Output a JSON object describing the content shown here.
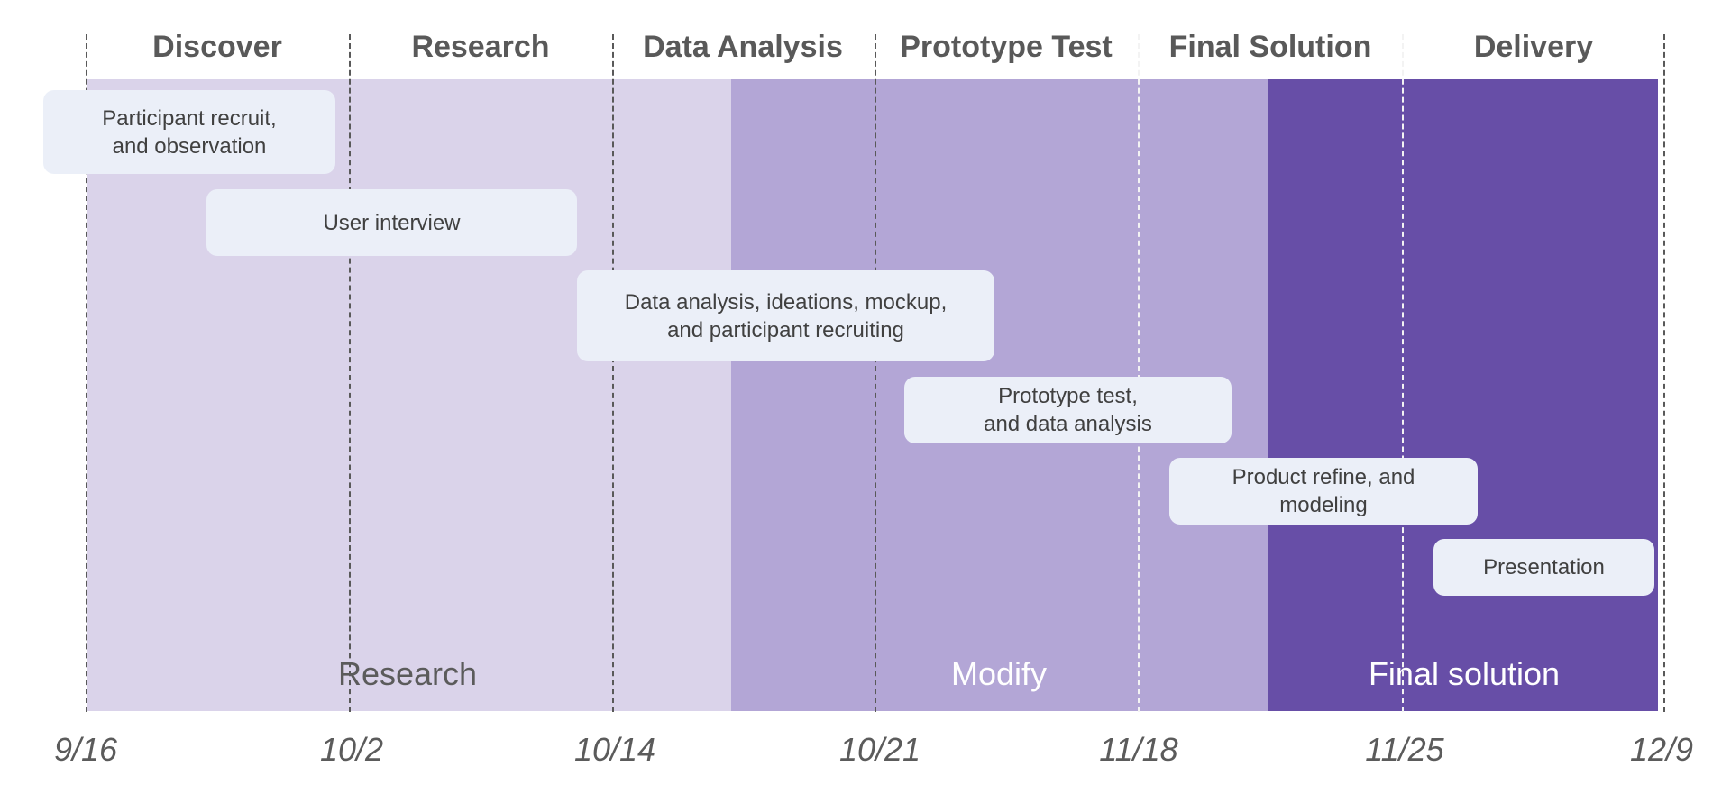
{
  "phases": [
    {
      "label": "Discover"
    },
    {
      "label": "Research"
    },
    {
      "label": "Data Analysis"
    },
    {
      "label": "Prototype Test"
    },
    {
      "label": "Final Solution"
    },
    {
      "label": "Delivery"
    }
  ],
  "dates": [
    "9/16",
    "10/2",
    "10/14",
    "10/21",
    "11/18",
    "11/25",
    "12/9"
  ],
  "stages": [
    {
      "label": "Research",
      "color": "#dad3ea"
    },
    {
      "label": "Modify",
      "color": "#b3a6d6"
    },
    {
      "label": "Final solution",
      "color": "#674ea7"
    }
  ],
  "tasks": [
    {
      "line1": "Participant recruit,",
      "line2": "and observation"
    },
    {
      "line1": "User interview"
    },
    {
      "line1": "Data analysis, ideations, mockup,",
      "line2": "and participant recruiting"
    },
    {
      "line1": "Prototype test,",
      "line2": "and data analysis"
    },
    {
      "line1": "Product refine, and",
      "line2": "modeling"
    },
    {
      "line1": "Presentation"
    }
  ],
  "colors": {
    "task_bg": "#ebeff8",
    "text": "#595959",
    "divider": "#595959"
  }
}
